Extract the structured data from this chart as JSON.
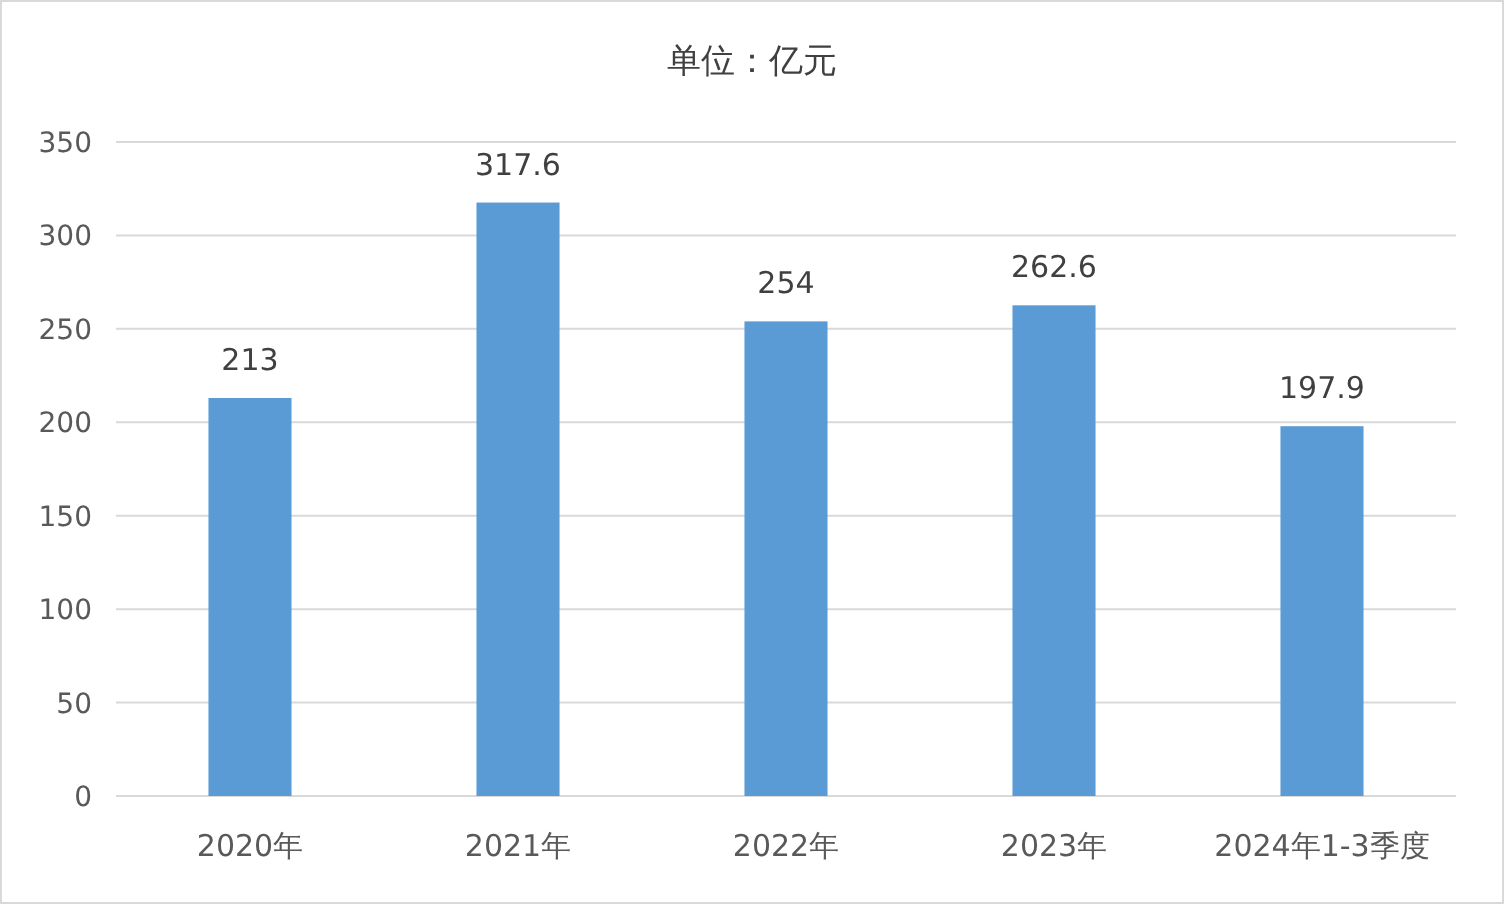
{
  "chart_data": {
    "type": "bar",
    "title": "单位：亿元",
    "categories": [
      "2020年",
      "2021年",
      "2022年",
      "2023年",
      "2024年1-3季度"
    ],
    "values": [
      213,
      317.6,
      254,
      262.6,
      197.9
    ],
    "color": "#5b9bd5",
    "ylim": [
      0,
      350
    ],
    "yticks": [
      0,
      50,
      100,
      150,
      200,
      250,
      300,
      350
    ],
    "grid": "y",
    "data_labels": true
  }
}
